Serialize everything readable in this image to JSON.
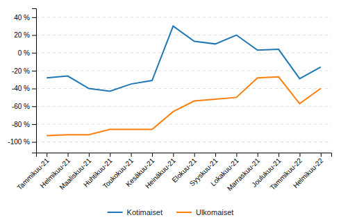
{
  "chart_data": {
    "type": "line",
    "categories": [
      "Tammikuu-21",
      "Helmikuu-21",
      "Maaliskuu-21",
      "Huhtikuu-21",
      "Toukokuu-21",
      "Kesäkuu-21",
      "Heinäkuu-21",
      "Elokuu-21",
      "Syyskuu-21",
      "Lokakuu-21",
      "Marraskuu-21",
      "Joulukuu-21",
      "Tammikuu-22",
      "Helmikuu-22"
    ],
    "series": [
      {
        "name": "Kotimaiset",
        "values": [
          -28,
          -26,
          -40,
          -43,
          -35,
          -31,
          30,
          13,
          10,
          20,
          3,
          4,
          -29,
          -16
        ]
      },
      {
        "name": "Ulkomaiset",
        "values": [
          -93,
          -92,
          -92,
          -86,
          -86,
          -86,
          -66,
          -54,
          -52,
          -50,
          -28,
          -27,
          -57,
          -40
        ]
      }
    ],
    "ylim": [
      -112,
      50
    ],
    "yticks": [
      {
        "value": -100,
        "label": "-100 %"
      },
      {
        "value": -80,
        "label": "-80 %"
      },
      {
        "value": -60,
        "label": "-60 %"
      },
      {
        "value": -40,
        "label": "-40 %"
      },
      {
        "value": -20,
        "label": "-20 %"
      },
      {
        "value": 0,
        "label": "0 %"
      },
      {
        "value": 20,
        "label": "20 %"
      },
      {
        "value": 40,
        "label": "40 %"
      }
    ],
    "grid": true,
    "legend": "bottom",
    "marker": "none"
  }
}
